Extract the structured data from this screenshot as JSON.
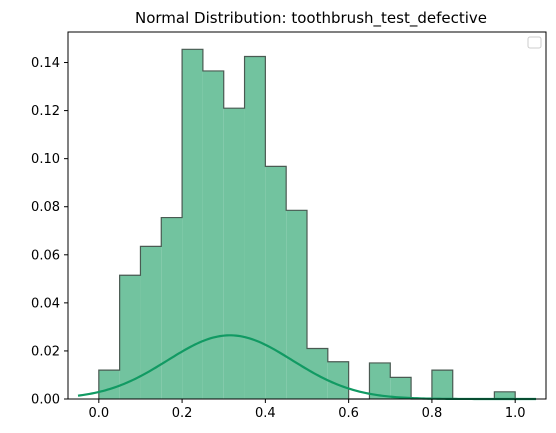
{
  "chart_data": {
    "type": "histogram",
    "title": "Normal Distribution: toothbrush_test_defective",
    "xlabel": "",
    "ylabel": "",
    "xlim": [
      -0.074,
      1.074
    ],
    "ylim": [
      0.0,
      0.1527
    ],
    "xticks": [
      0.0,
      0.2,
      0.4,
      0.6,
      0.8,
      1.0
    ],
    "xtick_labels": [
      "0.0",
      "0.2",
      "0.4",
      "0.6",
      "0.8",
      "1.0"
    ],
    "yticks": [
      0.0,
      0.02,
      0.04,
      0.06,
      0.08,
      0.1,
      0.12,
      0.14
    ],
    "ytick_labels": [
      "0.00",
      "0.02",
      "0.04",
      "0.06",
      "0.08",
      "0.10",
      "0.12",
      "0.14"
    ],
    "bin_edges": [
      0.0,
      0.05,
      0.1,
      0.15,
      0.2,
      0.25,
      0.3,
      0.35,
      0.4,
      0.45,
      0.5,
      0.55,
      0.6,
      0.65,
      0.7,
      0.75,
      0.8,
      0.85,
      0.9,
      0.95,
      1.0
    ],
    "bin_values": [
      0.012,
      0.0515,
      0.0635,
      0.0755,
      0.1455,
      0.1365,
      0.121,
      0.1425,
      0.0968,
      0.0785,
      0.021,
      0.0155,
      0.0,
      0.015,
      0.009,
      0.0,
      0.012,
      0.0,
      0.0,
      0.003
    ],
    "curve": {
      "type": "normal",
      "mean": 0.315,
      "std": 0.15,
      "peak": 0.0265,
      "x_range": [
        -0.05,
        1.05
      ]
    },
    "grid": false,
    "legend": {
      "placement": "top-right",
      "entries": []
    },
    "colors": {
      "bar_fill": "#72c39f",
      "bar_edge": "#4a5a52",
      "curve": "#119a63",
      "axis": "#000000"
    }
  }
}
